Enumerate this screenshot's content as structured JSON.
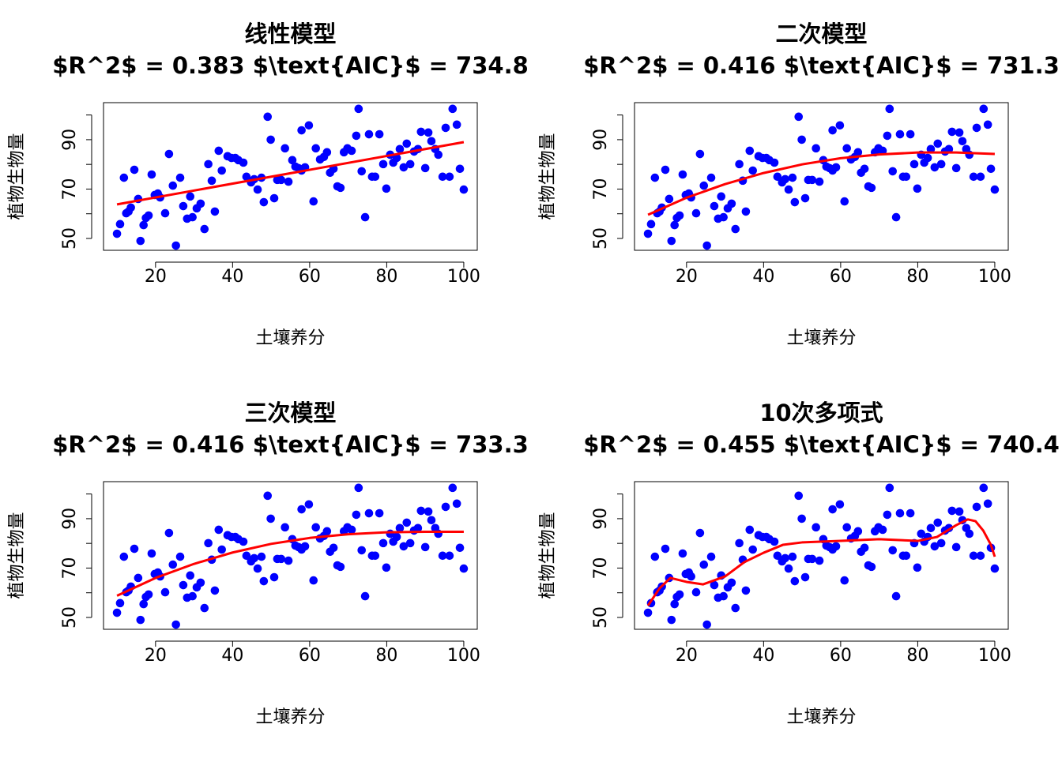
{
  "chart_data": [
    {
      "type": "scatter",
      "title": "线性模型",
      "subtitle": "$R^2$ = 0.383 $\\text{AIC}$ = 734.8",
      "xlabel": "土壤养分",
      "ylabel": "植物生物量",
      "xlim": [
        6.5,
        103.5
      ],
      "ylim": [
        45.2,
        105
      ],
      "xticks": [
        20,
        40,
        60,
        80,
        100
      ],
      "yticks": [
        50,
        {
          "value": 60,
          "label": null
        },
        70,
        {
          "value": 80,
          "label": null
        },
        90,
        {
          "value": 100,
          "label": null
        }
      ],
      "series": [
        {
          "type": "points",
          "color": "#0000ff",
          "x": [
            10,
            10.8,
            11.8,
            12.4,
            13,
            13.6,
            14.5,
            15.5,
            16.1,
            16.9,
            17.5,
            18.2,
            19,
            19.8,
            20.6,
            21.2,
            22.5,
            23.5,
            24.5,
            25.3,
            26.4,
            27.2,
            28.2,
            29,
            29.6,
            30.7,
            31.7,
            32.7,
            33.7,
            34.6,
            35.4,
            36.4,
            37.2,
            38.7,
            39.7,
            40.7,
            41.5,
            42.8,
            43.6,
            44.8,
            45.6,
            46.5,
            47.5,
            48.1,
            49.1,
            49.9,
            50.8,
            51.6,
            52.6,
            53.6,
            54.5,
            55.5,
            56.3,
            57.1,
            57.9,
            58.8,
            57.9,
            59.8,
            61,
            61.6,
            62.7,
            63.7,
            64.5,
            65.3,
            66.2,
            67.2,
            68,
            68.9,
            69.8,
            70.9,
            72.1,
            72.7,
            73.5,
            74.4,
            75.4,
            76.2,
            77,
            78.1,
            79.1,
            79.9,
            80.9,
            81.7,
            82.6,
            83.4,
            84.4,
            85.2,
            86.1,
            87.1,
            88.1,
            88.9,
            90,
            90.8,
            91.6,
            92.6,
            93.4,
            94.5,
            95.3,
            96.3,
            97.1,
            98.2,
            99,
            100
          ],
          "values": [
            51.9,
            55.8,
            74.6,
            60.2,
            60.9,
            62.5,
            77.8,
            66,
            49,
            55.4,
            58.3,
            59.3,
            75.9,
            67.6,
            68.2,
            66.6,
            60.2,
            84.2,
            71.4,
            47.1,
            74.6,
            63.1,
            58,
            67,
            58.6,
            62.2,
            64.1,
            53.8,
            80.1,
            73.4,
            60.9,
            85.5,
            77.5,
            83.3,
            82.6,
            82.6,
            81.7,
            80.7,
            75,
            72.7,
            74,
            69.8,
            74.6,
            64.7,
            99.3,
            90,
            66.3,
            73.7,
            73.7,
            86.5,
            73,
            81.7,
            79.1,
            78.5,
            77.5,
            78.8,
            93.8,
            95.8,
            65,
            86.5,
            82,
            83,
            84.9,
            76.6,
            78.2,
            71.1,
            70.5,
            84.9,
            86.5,
            85.5,
            91.6,
            102.5,
            77.2,
            58.6,
            92.2,
            75,
            75,
            92.2,
            80.1,
            70.2,
            83.9,
            80.7,
            82.6,
            86.2,
            78.8,
            88.4,
            80.1,
            85.2,
            86.2,
            93.2,
            78.5,
            92.9,
            89.4,
            86.2,
            83.9,
            75,
            94.8,
            75,
            102.5,
            96.1,
            78.2,
            69.8
          ]
        },
        {
          "type": "line",
          "color": "#ff0000",
          "x": [
            10,
            100
          ],
          "values": [
            63.8,
            89
          ]
        }
      ]
    },
    {
      "type": "scatter",
      "title": "二次模型",
      "subtitle": "$R^2$ = 0.416 $\\text{AIC}$ = 731.3",
      "xlabel": "土壤养分",
      "ylabel": "植物生物量",
      "xlim": [
        6.5,
        103.5
      ],
      "ylim": [
        45.2,
        105
      ],
      "xticks": [
        20,
        40,
        60,
        80,
        100
      ],
      "yticks": [
        50,
        {
          "value": 60,
          "label": null
        },
        70,
        {
          "value": 80,
          "label": null
        },
        90,
        {
          "value": 100,
          "label": null
        }
      ],
      "series": [
        {
          "type": "points",
          "color": "#0000ff",
          "x": [
            10,
            10.8,
            11.8,
            12.4,
            13,
            13.6,
            14.5,
            15.5,
            16.1,
            16.9,
            17.5,
            18.2,
            19,
            19.8,
            20.6,
            21.2,
            22.5,
            23.5,
            24.5,
            25.3,
            26.4,
            27.2,
            28.2,
            29,
            29.6,
            30.7,
            31.7,
            32.7,
            33.7,
            34.6,
            35.4,
            36.4,
            37.2,
            38.7,
            39.7,
            40.7,
            41.5,
            42.8,
            43.6,
            44.8,
            45.6,
            46.5,
            47.5,
            48.1,
            49.1,
            49.9,
            50.8,
            51.6,
            52.6,
            53.6,
            54.5,
            55.5,
            56.3,
            57.1,
            57.9,
            58.8,
            57.9,
            59.8,
            61,
            61.6,
            62.7,
            63.7,
            64.5,
            65.3,
            66.2,
            67.2,
            68,
            68.9,
            69.8,
            70.9,
            72.1,
            72.7,
            73.5,
            74.4,
            75.4,
            76.2,
            77,
            78.1,
            79.1,
            79.9,
            80.9,
            81.7,
            82.6,
            83.4,
            84.4,
            85.2,
            86.1,
            87.1,
            88.1,
            88.9,
            90,
            90.8,
            91.6,
            92.6,
            93.4,
            94.5,
            95.3,
            96.3,
            97.1,
            98.2,
            99,
            100
          ],
          "values": [
            51.9,
            55.8,
            74.6,
            60.2,
            60.9,
            62.5,
            77.8,
            66,
            49,
            55.4,
            58.3,
            59.3,
            75.9,
            67.6,
            68.2,
            66.6,
            60.2,
            84.2,
            71.4,
            47.1,
            74.6,
            63.1,
            58,
            67,
            58.6,
            62.2,
            64.1,
            53.8,
            80.1,
            73.4,
            60.9,
            85.5,
            77.5,
            83.3,
            82.6,
            82.6,
            81.7,
            80.7,
            75,
            72.7,
            74,
            69.8,
            74.6,
            64.7,
            99.3,
            90,
            66.3,
            73.7,
            73.7,
            86.5,
            73,
            81.7,
            79.1,
            78.5,
            77.5,
            78.8,
            93.8,
            95.8,
            65,
            86.5,
            82,
            83,
            84.9,
            76.6,
            78.2,
            71.1,
            70.5,
            84.9,
            86.5,
            85.5,
            91.6,
            102.5,
            77.2,
            58.6,
            92.2,
            75,
            75,
            92.2,
            80.1,
            70.2,
            83.9,
            80.7,
            82.6,
            86.2,
            78.8,
            88.4,
            80.1,
            85.2,
            86.2,
            93.2,
            78.5,
            92.9,
            89.4,
            86.2,
            83.9,
            75,
            94.8,
            75,
            102.5,
            96.1,
            78.2,
            69.8
          ]
        },
        {
          "type": "line",
          "color": "#ff0000",
          "x": [
            10,
            20,
            30,
            40,
            50,
            60,
            70,
            80,
            90,
            100
          ],
          "values": [
            59.6,
            66.5,
            72,
            76.5,
            80,
            82.5,
            84,
            84.8,
            84.8,
            84.2
          ]
        }
      ]
    },
    {
      "type": "scatter",
      "title": "三次模型",
      "subtitle": "$R^2$ = 0.416 $\\text{AIC}$ = 733.3",
      "xlabel": "土壤养分",
      "ylabel": "植物生物量",
      "xlim": [
        6.5,
        103.5
      ],
      "ylim": [
        45.2,
        105
      ],
      "xticks": [
        20,
        40,
        60,
        80,
        100
      ],
      "yticks": [
        50,
        {
          "value": 60,
          "label": null
        },
        70,
        {
          "value": 80,
          "label": null
        },
        90,
        {
          "value": 100,
          "label": null
        }
      ],
      "series": [
        {
          "type": "points",
          "color": "#0000ff",
          "x": [
            10,
            10.8,
            11.8,
            12.4,
            13,
            13.6,
            14.5,
            15.5,
            16.1,
            16.9,
            17.5,
            18.2,
            19,
            19.8,
            20.6,
            21.2,
            22.5,
            23.5,
            24.5,
            25.3,
            26.4,
            27.2,
            28.2,
            29,
            29.6,
            30.7,
            31.7,
            32.7,
            33.7,
            34.6,
            35.4,
            36.4,
            37.2,
            38.7,
            39.7,
            40.7,
            41.5,
            42.8,
            43.6,
            44.8,
            45.6,
            46.5,
            47.5,
            48.1,
            49.1,
            49.9,
            50.8,
            51.6,
            52.6,
            53.6,
            54.5,
            55.5,
            56.3,
            57.1,
            57.9,
            58.8,
            57.9,
            59.8,
            61,
            61.6,
            62.7,
            63.7,
            64.5,
            65.3,
            66.2,
            67.2,
            68,
            68.9,
            69.8,
            70.9,
            72.1,
            72.7,
            73.5,
            74.4,
            75.4,
            76.2,
            77,
            78.1,
            79.1,
            79.9,
            80.9,
            81.7,
            82.6,
            83.4,
            84.4,
            85.2,
            86.1,
            87.1,
            88.1,
            88.9,
            90,
            90.8,
            91.6,
            92.6,
            93.4,
            94.5,
            95.3,
            96.3,
            97.1,
            98.2,
            99,
            100
          ],
          "values": [
            51.9,
            55.8,
            74.6,
            60.2,
            60.9,
            62.5,
            77.8,
            66,
            49,
            55.4,
            58.3,
            59.3,
            75.9,
            67.6,
            68.2,
            66.6,
            60.2,
            84.2,
            71.4,
            47.1,
            74.6,
            63.1,
            58,
            67,
            58.6,
            62.2,
            64.1,
            53.8,
            80.1,
            73.4,
            60.9,
            85.5,
            77.5,
            83.3,
            82.6,
            82.6,
            81.7,
            80.7,
            75,
            72.7,
            74,
            69.8,
            74.6,
            64.7,
            99.3,
            90,
            66.3,
            73.7,
            73.7,
            86.5,
            73,
            81.7,
            79.1,
            78.5,
            77.5,
            78.8,
            93.8,
            95.8,
            65,
            86.5,
            82,
            83,
            84.9,
            76.6,
            78.2,
            71.1,
            70.5,
            84.9,
            86.5,
            85.5,
            91.6,
            102.5,
            77.2,
            58.6,
            92.2,
            75,
            75,
            92.2,
            80.1,
            70.2,
            83.9,
            80.7,
            82.6,
            86.2,
            78.8,
            88.4,
            80.1,
            85.2,
            86.2,
            93.2,
            78.5,
            92.9,
            89.4,
            86.2,
            83.9,
            75,
            94.8,
            75,
            102.5,
            96.1,
            78.2,
            69.8
          ]
        },
        {
          "type": "line",
          "color": "#ff0000",
          "x": [
            10,
            20,
            30,
            40,
            50,
            60,
            70,
            80,
            90,
            100
          ],
          "values": [
            58.8,
            66,
            71.7,
            76.3,
            79.8,
            82.2,
            83.7,
            84.5,
            84.7,
            84.7
          ]
        }
      ]
    },
    {
      "type": "scatter",
      "title": "10次多项式",
      "subtitle": "$R^2$ = 0.455 $\\text{AIC}$ = 740.4",
      "xlabel": "土壤养分",
      "ylabel": "植物生物量",
      "xlim": [
        6.5,
        103.5
      ],
      "ylim": [
        45.2,
        105
      ],
      "xticks": [
        20,
        40,
        60,
        80,
        100
      ],
      "yticks": [
        50,
        {
          "value": 60,
          "label": null
        },
        70,
        {
          "value": 80,
          "label": null
        },
        90,
        {
          "value": 100,
          "label": null
        }
      ],
      "series": [
        {
          "type": "points",
          "color": "#0000ff",
          "x": [
            10,
            10.8,
            11.8,
            12.4,
            13,
            13.6,
            14.5,
            15.5,
            16.1,
            16.9,
            17.5,
            18.2,
            19,
            19.8,
            20.6,
            21.2,
            22.5,
            23.5,
            24.5,
            25.3,
            26.4,
            27.2,
            28.2,
            29,
            29.6,
            30.7,
            31.7,
            32.7,
            33.7,
            34.6,
            35.4,
            36.4,
            37.2,
            38.7,
            39.7,
            40.7,
            41.5,
            42.8,
            43.6,
            44.8,
            45.6,
            46.5,
            47.5,
            48.1,
            49.1,
            49.9,
            50.8,
            51.6,
            52.6,
            53.6,
            54.5,
            55.5,
            56.3,
            57.1,
            57.9,
            58.8,
            57.9,
            59.8,
            61,
            61.6,
            62.7,
            63.7,
            64.5,
            65.3,
            66.2,
            67.2,
            68,
            68.9,
            69.8,
            70.9,
            72.1,
            72.7,
            73.5,
            74.4,
            75.4,
            76.2,
            77,
            78.1,
            79.1,
            79.9,
            80.9,
            81.7,
            82.6,
            83.4,
            84.4,
            85.2,
            86.1,
            87.1,
            88.1,
            88.9,
            90,
            90.8,
            91.6,
            92.6,
            93.4,
            94.5,
            95.3,
            96.3,
            97.1,
            98.2,
            99,
            100
          ],
          "values": [
            51.9,
            55.8,
            74.6,
            60.2,
            60.9,
            62.5,
            77.8,
            66,
            49,
            55.4,
            58.3,
            59.3,
            75.9,
            67.6,
            68.2,
            66.6,
            60.2,
            84.2,
            71.4,
            47.1,
            74.6,
            63.1,
            58,
            67,
            58.6,
            62.2,
            64.1,
            53.8,
            80.1,
            73.4,
            60.9,
            85.5,
            77.5,
            83.3,
            82.6,
            82.6,
            81.7,
            80.7,
            75,
            72.7,
            74,
            69.8,
            74.6,
            64.7,
            99.3,
            90,
            66.3,
            73.7,
            73.7,
            86.5,
            73,
            81.7,
            79.1,
            78.5,
            77.5,
            78.8,
            93.8,
            95.8,
            65,
            86.5,
            82,
            83,
            84.9,
            76.6,
            78.2,
            71.1,
            70.5,
            84.9,
            86.5,
            85.5,
            91.6,
            102.5,
            77.2,
            58.6,
            92.2,
            75,
            75,
            92.2,
            80.1,
            70.2,
            83.9,
            80.7,
            82.6,
            86.2,
            78.8,
            88.4,
            80.1,
            85.2,
            86.2,
            93.2,
            78.5,
            92.9,
            89.4,
            86.2,
            83.9,
            75,
            94.8,
            75,
            102.5,
            96.1,
            78.2,
            69.8
          ]
        },
        {
          "type": "line",
          "color": "#ff0000",
          "x": [
            10,
            13,
            15.8,
            20,
            24.3,
            30,
            35,
            40,
            45,
            50,
            60,
            70,
            80,
            85,
            90,
            93,
            95,
            97,
            99,
            100
          ],
          "values": [
            54.8,
            61.8,
            66,
            64.4,
            63.4,
            66.6,
            72.4,
            76.2,
            79.4,
            80.4,
            81,
            81.7,
            81,
            82.6,
            87.4,
            89.7,
            89,
            85.2,
            79.4,
            74.6
          ]
        }
      ]
    }
  ]
}
